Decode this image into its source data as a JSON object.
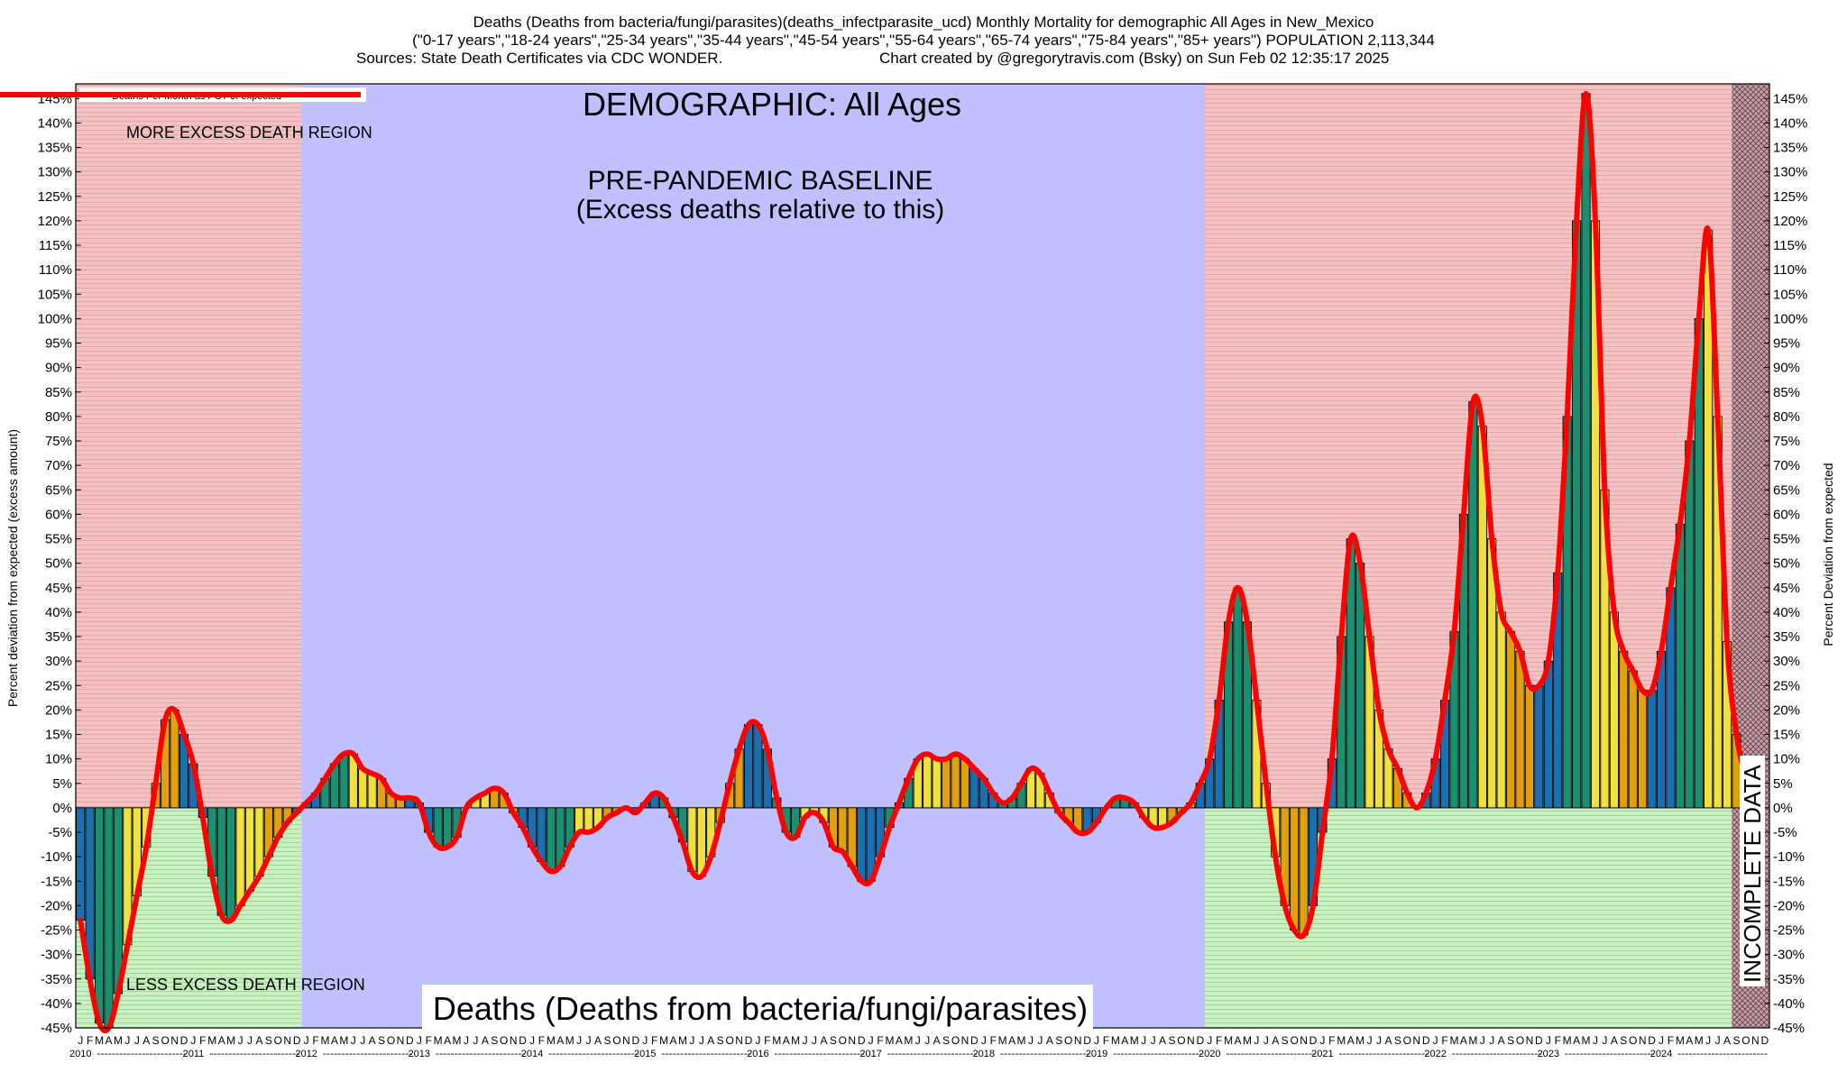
{
  "header": {
    "line1": "Deaths (Deaths from bacteria/fungi/parasites)(deaths_infectparasite_ucd) Monthly Mortality for demographic All Ages in New_Mexico",
    "line2": "(\"0-17 years\",\"18-24 years\",\"25-34 years\",\"35-44 years\",\"45-54 years\",\"55-64 years\",\"65-74 years\",\"75-84 years\",\"85+ years\") POPULATION 2,113,344",
    "line3_left": "Sources: State Death Certificates via CDC WONDER.",
    "line3_right": "Chart created by @gregorytravis.com (Bsky) on Sun Feb 02 12:35:17 2025"
  },
  "annotations": {
    "demographic": "DEMOGRAPHIC: All Ages",
    "baseline_line1": "PRE-PANDEMIC BASELINE",
    "baseline_line2": "(Excess deaths relative to this)",
    "more_excess": "MORE EXCESS DEATH REGION",
    "less_excess": "LESS EXCESS DEATH REGION",
    "incomplete": "INCOMPLETE DATA",
    "bottom_title": "Deaths (Deaths from bacteria/fungi/parasites)"
  },
  "legend": {
    "label": "Deaths Per Month as PCT of expected"
  },
  "colors": {
    "more_region": "#f4c2c2",
    "less_region": "#c8f0c0",
    "baseline_region": "#c0c0ff",
    "incomplete_region": "#c8a0a8",
    "line": "#ff0000",
    "bar_winter": "#1a6fb0",
    "bar_spring": "#1a9070",
    "bar_summer": "#f0e040",
    "bar_fall": "#e0a010"
  },
  "chart_data": {
    "type": "bar",
    "title": "Deaths (Deaths from bacteria/fungi/parasites)(deaths_infectparasite_ucd) Monthly Mortality for demographic All Ages in New_Mexico",
    "ylabel_left": "Percent deviation from expected (excess amount)",
    "ylabel_right": "Percent Deviation from expected",
    "ylim": [
      -45,
      148
    ],
    "yticks": [
      -45,
      -40,
      -35,
      -30,
      -25,
      -20,
      -15,
      -10,
      -5,
      0,
      5,
      10,
      15,
      20,
      25,
      30,
      35,
      40,
      45,
      50,
      55,
      60,
      65,
      70,
      75,
      80,
      85,
      90,
      95,
      100,
      105,
      110,
      115,
      120,
      125,
      130,
      135,
      140,
      145
    ],
    "ytick_suffix": "%",
    "month_letters": [
      "J",
      "F",
      "M",
      "A",
      "M",
      "J",
      "J",
      "A",
      "S",
      "O",
      "N",
      "D"
    ],
    "years": [
      "2010",
      "2011",
      "2012",
      "2013",
      "2014",
      "2015",
      "2016",
      "2017",
      "2018",
      "2019",
      "2020",
      "2021",
      "2022",
      "2023",
      "2024"
    ],
    "start": "2010-01",
    "baseline_region": [
      "2012-01",
      "2019-12"
    ],
    "incomplete_from": "2024-09",
    "values": [
      -23,
      -35,
      -44,
      -45,
      -38,
      -28,
      -18,
      -8,
      5,
      18,
      20,
      15,
      9,
      -2,
      -14,
      -22,
      -23,
      -20,
      -17,
      -14,
      -10,
      -6,
      -3,
      -1,
      1,
      3,
      6,
      9,
      11,
      11,
      8,
      7,
      6,
      3,
      2,
      2,
      1,
      -5,
      -8,
      -8,
      -6,
      0,
      2,
      3,
      4,
      3,
      -1,
      -4,
      -8,
      -11,
      -13,
      -12,
      -8,
      -5,
      -5,
      -4,
      -2,
      -1,
      0,
      -1,
      1,
      3,
      2,
      -2,
      -7,
      -13,
      -14,
      -10,
      -3,
      5,
      12,
      17,
      17,
      12,
      2,
      -5,
      -6,
      -2,
      -1,
      -3,
      -8,
      -9,
      -12,
      -15,
      -15,
      -10,
      -4,
      1,
      6,
      10,
      11,
      10,
      10,
      11,
      10,
      8,
      6,
      3,
      1,
      2,
      5,
      8,
      7,
      3,
      -1,
      -3,
      -5,
      -5,
      -3,
      0,
      2,
      2,
      1,
      -2,
      -4,
      -4,
      -3,
      -1,
      1,
      5,
      10,
      22,
      38,
      45,
      38,
      22,
      5,
      -10,
      -20,
      -25,
      -26,
      -20,
      -5,
      10,
      35,
      55,
      50,
      35,
      20,
      12,
      8,
      3,
      0,
      3,
      10,
      22,
      36,
      60,
      83,
      78,
      55,
      40,
      36,
      32,
      25,
      25,
      30,
      48,
      80,
      120,
      146,
      120,
      65,
      40,
      32,
      28,
      24,
      24,
      32,
      45,
      58,
      75,
      100,
      118,
      80,
      34,
      15,
      6,
      null,
      null
    ]
  },
  "xaxis_dashes": "------------------------"
}
